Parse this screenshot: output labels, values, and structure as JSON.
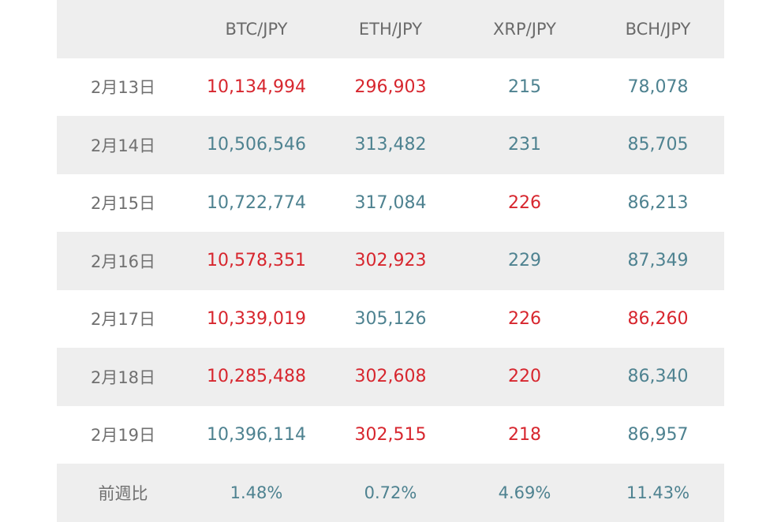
{
  "colors": {
    "up": "#d7262e",
    "down": "#4e8290",
    "label": "#707070",
    "row_alt": "#eeeeee"
  },
  "headers": [
    "",
    "BTC/JPY",
    "ETH/JPY",
    "XRP/JPY",
    "BCH/JPY"
  ],
  "rows": [
    {
      "date": "2月13日",
      "cells": [
        {
          "value": "10,134,994",
          "trend": "up"
        },
        {
          "value": "296,903",
          "trend": "up"
        },
        {
          "value": "215",
          "trend": "down"
        },
        {
          "value": "78,078",
          "trend": "down"
        }
      ]
    },
    {
      "date": "2月14日",
      "cells": [
        {
          "value": "10,506,546",
          "trend": "down"
        },
        {
          "value": "313,482",
          "trend": "down"
        },
        {
          "value": "231",
          "trend": "down"
        },
        {
          "value": "85,705",
          "trend": "down"
        }
      ]
    },
    {
      "date": "2月15日",
      "cells": [
        {
          "value": "10,722,774",
          "trend": "down"
        },
        {
          "value": "317,084",
          "trend": "down"
        },
        {
          "value": "226",
          "trend": "up"
        },
        {
          "value": "86,213",
          "trend": "down"
        }
      ]
    },
    {
      "date": "2月16日",
      "cells": [
        {
          "value": "10,578,351",
          "trend": "up"
        },
        {
          "value": "302,923",
          "trend": "up"
        },
        {
          "value": "229",
          "trend": "down"
        },
        {
          "value": "87,349",
          "trend": "down"
        }
      ]
    },
    {
      "date": "2月17日",
      "cells": [
        {
          "value": "10,339,019",
          "trend": "up"
        },
        {
          "value": "305,126",
          "trend": "down"
        },
        {
          "value": "226",
          "trend": "up"
        },
        {
          "value": "86,260",
          "trend": "up"
        }
      ]
    },
    {
      "date": "2月18日",
      "cells": [
        {
          "value": "10,285,488",
          "trend": "up"
        },
        {
          "value": "302,608",
          "trend": "up"
        },
        {
          "value": "220",
          "trend": "up"
        },
        {
          "value": "86,340",
          "trend": "down"
        }
      ]
    },
    {
      "date": "2月19日",
      "cells": [
        {
          "value": "10,396,114",
          "trend": "down"
        },
        {
          "value": "302,515",
          "trend": "up"
        },
        {
          "value": "218",
          "trend": "up"
        },
        {
          "value": "86,957",
          "trend": "down"
        }
      ]
    }
  ],
  "footer": {
    "label": "前週比",
    "values": [
      "1.48%",
      "0.72%",
      "4.69%",
      "11.43%"
    ]
  }
}
